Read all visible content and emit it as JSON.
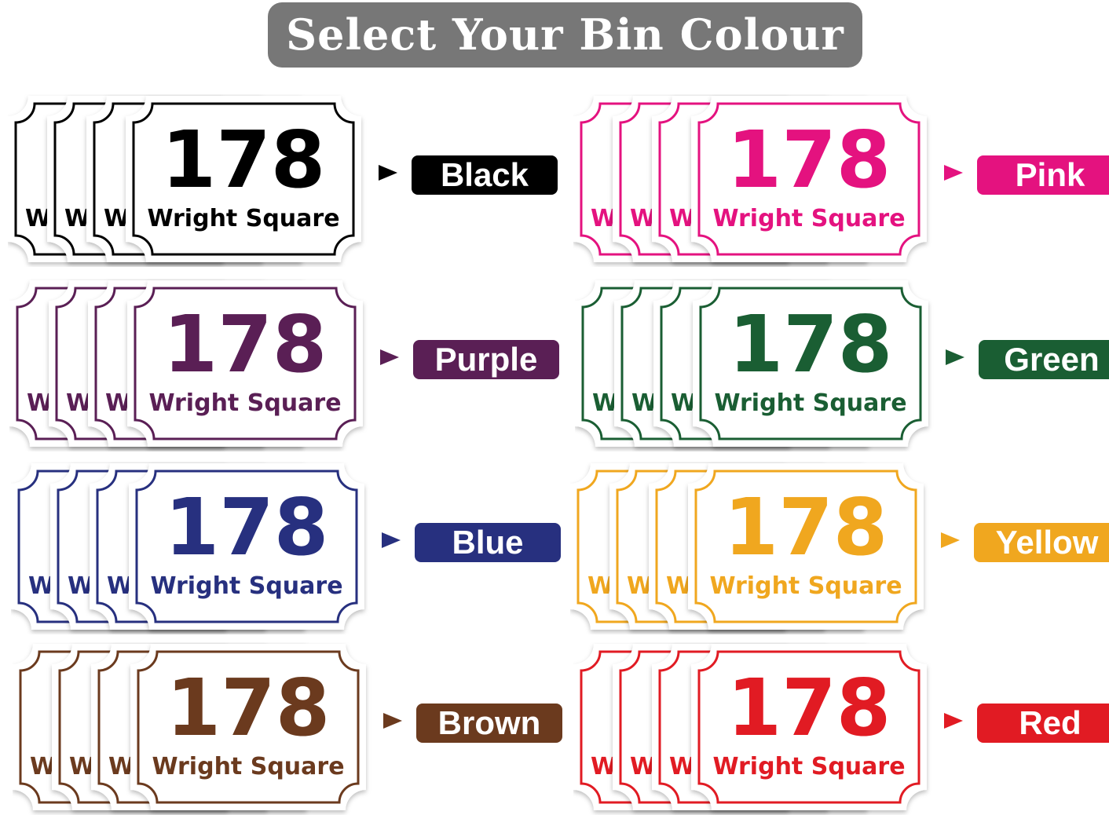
{
  "title": "Select Your Bin Colour",
  "sticker": {
    "number": "178",
    "street": "Wright Square",
    "partial_letter": "W"
  },
  "options": [
    {
      "label": "Black",
      "color": "#000000"
    },
    {
      "label": "Pink",
      "color": "#e4127f"
    },
    {
      "label": "Purple",
      "color": "#5a1f55"
    },
    {
      "label": "Green",
      "color": "#1a5e33"
    },
    {
      "label": "Blue",
      "color": "#27307f"
    },
    {
      "label": "Yellow",
      "color": "#f0a71f"
    },
    {
      "label": "Brown",
      "color": "#6b3a1e"
    },
    {
      "label": "Red",
      "color": "#e11b23"
    }
  ],
  "icons": {
    "arrow": "arrow-right-icon"
  }
}
